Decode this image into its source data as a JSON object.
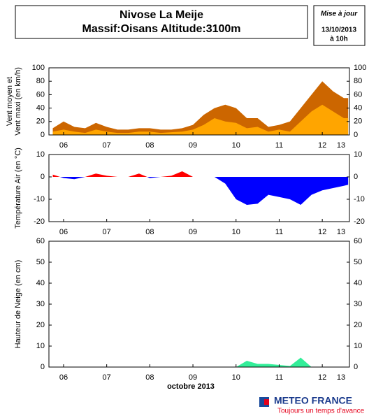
{
  "header": {
    "title_lines": [
      "Nivose La Meije",
      "Massif:Oisans Altitude:3100m"
    ]
  },
  "update": {
    "lines": [
      "Mise à jour",
      "13/10/2013",
      "à 10h"
    ]
  },
  "logo": {
    "name": "METEO FRANCE",
    "tagline": "Toujours un temps d'avance"
  },
  "chart_data": [
    {
      "type": "area",
      "ylabel": [
        "Vent moyen et",
        "Vent maxi (en km/h)"
      ],
      "x": [
        5.75,
        6,
        6.25,
        6.5,
        6.75,
        7,
        7.25,
        7.5,
        7.75,
        8,
        8.25,
        8.5,
        8.75,
        9,
        9.25,
        9.5,
        9.75,
        10,
        10.25,
        10.5,
        10.75,
        11,
        11.25,
        11.5,
        11.75,
        12,
        12.25,
        12.5,
        12.6
      ],
      "series": [
        {
          "color": "#cc6600",
          "values": [
            10,
            20,
            12,
            10,
            18,
            12,
            8,
            8,
            10,
            10,
            8,
            8,
            10,
            15,
            30,
            40,
            45,
            40,
            25,
            25,
            12,
            15,
            20,
            40,
            60,
            80,
            65,
            55,
            55
          ]
        },
        {
          "color": "#ffa500",
          "values": [
            5,
            8,
            5,
            3,
            8,
            5,
            3,
            3,
            5,
            5,
            3,
            4,
            5,
            8,
            15,
            25,
            20,
            18,
            10,
            12,
            5,
            8,
            5,
            20,
            35,
            45,
            35,
            25,
            25
          ]
        }
      ],
      "xlim": [
        5.66,
        12.63
      ],
      "xticks": [
        {
          "value": 6,
          "label": "06"
        },
        {
          "value": 7,
          "label": "07"
        },
        {
          "value": 8,
          "label": "08"
        },
        {
          "value": 9,
          "label": "09"
        },
        {
          "value": 10,
          "label": "10"
        },
        {
          "value": 11,
          "label": "11"
        },
        {
          "value": 12,
          "label": "12"
        },
        {
          "value": 13,
          "label": "13"
        }
      ],
      "ylim": [
        0,
        100
      ],
      "yticks": [
        0,
        20,
        40,
        60,
        80,
        100
      ]
    },
    {
      "type": "diverging-area",
      "ylabel": [
        "Température Air (en °C)"
      ],
      "x": [
        5.75,
        6,
        6.25,
        6.5,
        6.75,
        7,
        7.25,
        7.5,
        7.75,
        8,
        8.25,
        8.5,
        8.75,
        9,
        9.25,
        9.5,
        9.75,
        10,
        10.25,
        10.5,
        10.75,
        11,
        11.25,
        11.5,
        11.75,
        12,
        12.25,
        12.5,
        12.6
      ],
      "values": [
        1,
        -0.5,
        -1,
        0,
        1.5,
        0.5,
        0,
        0,
        1.5,
        -0.5,
        0,
        0.5,
        2.5,
        0,
        0,
        0,
        -3,
        -10,
        -12.5,
        -12,
        -8,
        -9,
        -10,
        -12.5,
        -8,
        -6,
        -5,
        -4,
        -3.5
      ],
      "color_above": "#ff0000",
      "color_below": "#0000ff",
      "xlim": [
        5.66,
        12.63
      ],
      "xticks": [
        {
          "value": 6,
          "label": "06"
        },
        {
          "value": 7,
          "label": "07"
        },
        {
          "value": 8,
          "label": "08"
        },
        {
          "value": 9,
          "label": "09"
        },
        {
          "value": 10,
          "label": "10"
        },
        {
          "value": 11,
          "label": "11"
        },
        {
          "value": 12,
          "label": "12"
        },
        {
          "value": 13,
          "label": "13"
        }
      ],
      "ylim": [
        -20,
        10
      ],
      "yticks": [
        10,
        0,
        -10,
        -20
      ]
    },
    {
      "type": "area",
      "ylabel": [
        "Hauteur de Neige (en cm)"
      ],
      "xlabel": "octobre 2013",
      "x": [
        5.75,
        6,
        6.25,
        6.5,
        6.75,
        7,
        7.25,
        7.5,
        7.75,
        8,
        8.25,
        8.5,
        8.75,
        9,
        9.25,
        9.5,
        9.75,
        10,
        10.25,
        10.5,
        10.75,
        11,
        11.25,
        11.5,
        11.75,
        12,
        12.25,
        12.5,
        12.6
      ],
      "series": [
        {
          "color": "#33ee99",
          "values": [
            0,
            0,
            0,
            0,
            0,
            0,
            0,
            0,
            0,
            0,
            0,
            0,
            0,
            0,
            0,
            0,
            0,
            0,
            3,
            1.5,
            1.5,
            1,
            0.5,
            4.5,
            0,
            0,
            0,
            0,
            0
          ]
        }
      ],
      "xlim": [
        5.66,
        12.63
      ],
      "xticks": [
        {
          "value": 6,
          "label": "06"
        },
        {
          "value": 7,
          "label": "07"
        },
        {
          "value": 8,
          "label": "08"
        },
        {
          "value": 9,
          "label": "09"
        },
        {
          "value": 10,
          "label": "10"
        },
        {
          "value": 11,
          "label": "11"
        },
        {
          "value": 12,
          "label": "12"
        },
        {
          "value": 13,
          "label": "13"
        }
      ],
      "ylim": [
        0,
        60
      ],
      "yticks": [
        0,
        10,
        20,
        30,
        40,
        50,
        60
      ]
    }
  ]
}
